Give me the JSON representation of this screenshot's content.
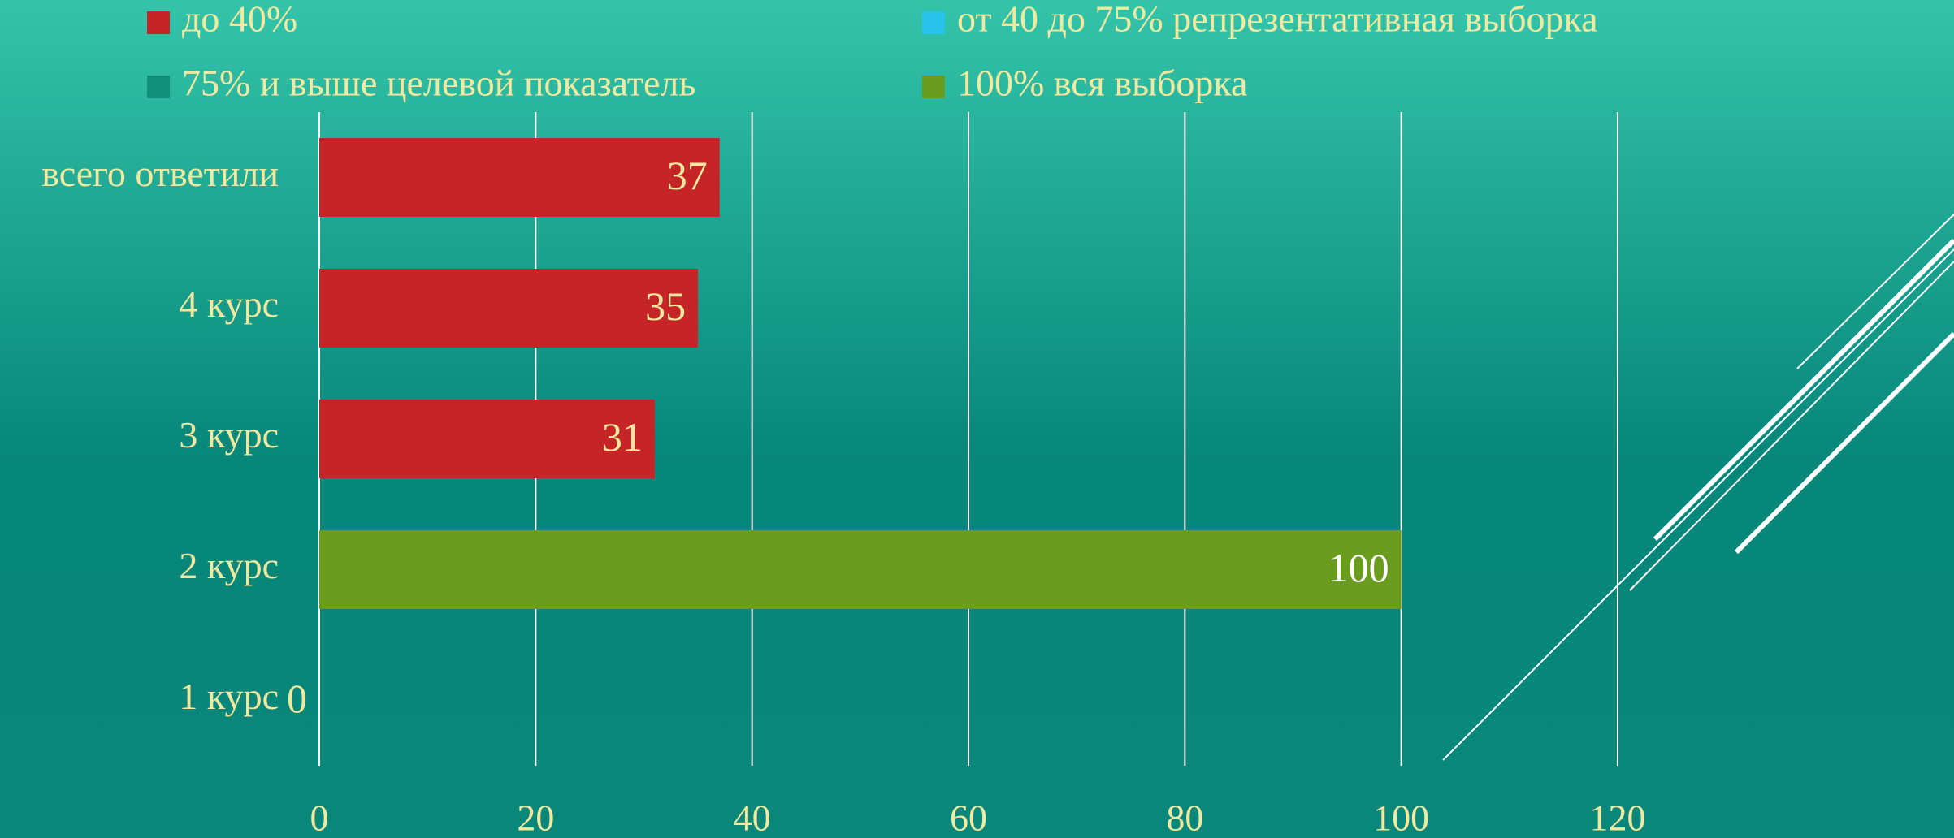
{
  "chart_data": {
    "type": "bar",
    "orientation": "horizontal",
    "stacked": true,
    "categories": [
      "всего ответили",
      "4 курс",
      "3 курс",
      "2 курс",
      "1 курс"
    ],
    "series": [
      {
        "name": "до 40%",
        "color": "#c62527",
        "values": [
          37,
          35,
          31,
          null,
          0
        ]
      },
      {
        "name": "от 40 до 75% репрезентативная выборка",
        "color": "#27c3ea",
        "values": [
          null,
          null,
          null,
          null,
          null
        ]
      },
      {
        "name": "75% и выше целевой показатель",
        "color": "#10907c",
        "values": [
          null,
          null,
          null,
          null,
          null
        ]
      },
      {
        "name": "100% вся выборка",
        "color": "#6a9c1e",
        "values": [
          null,
          null,
          null,
          100,
          null
        ]
      }
    ],
    "xlim": [
      0,
      120
    ],
    "xticks": [
      0,
      20,
      40,
      60,
      80,
      100,
      120
    ],
    "grid": true,
    "legend": "top"
  }
}
